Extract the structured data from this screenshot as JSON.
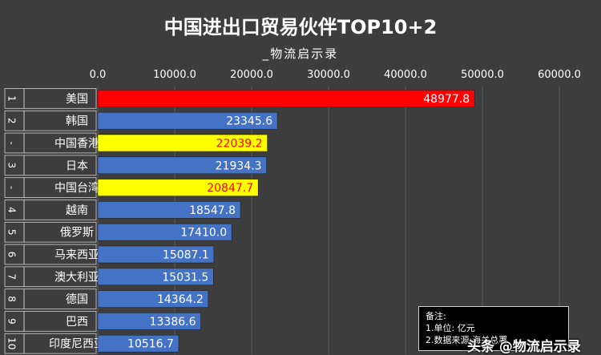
{
  "chart_data": {
    "type": "bar",
    "orientation": "horizontal",
    "title": "中国进出口贸易伙伴TOP10+2",
    "subtitle": "_物流启示录",
    "x_ticks": [
      "0.0",
      "10000.0",
      "20000.0",
      "30000.0",
      "40000.0",
      "50000.0",
      "60000.0"
    ],
    "xlim": [
      0,
      60000
    ],
    "grid": true,
    "ranks": [
      "1",
      "2",
      "-",
      "3",
      "-",
      "4",
      "5",
      "6",
      "7",
      "8",
      "9",
      "10"
    ],
    "categories": [
      "美国",
      "韩国",
      "中国香港",
      "日本",
      "中国台湾",
      "越南",
      "俄罗斯",
      "马来西亚",
      "澳大利亚",
      "德国",
      "巴西",
      "印度尼西亚"
    ],
    "values": [
      48977.8,
      23345.6,
      22039.2,
      21934.3,
      20847.7,
      18547.8,
      17410.0,
      15087.1,
      15031.5,
      14364.2,
      13386.6,
      10516.7
    ],
    "labels": [
      "48977.8",
      "23345.6",
      "22039.2",
      "21934.3",
      "20847.7",
      "18547.8",
      "17410.0",
      "15087.1",
      "15031.5",
      "14364.2",
      "13386.6",
      "10516.7"
    ],
    "bar_colors": [
      "#ff0000",
      "#4472c4",
      "#ffff00",
      "#4472c4",
      "#ffff00",
      "#4472c4",
      "#4472c4",
      "#4472c4",
      "#4472c4",
      "#4472c4",
      "#4472c4",
      "#4472c4"
    ],
    "label_colors": [
      "#ffffff",
      "#ffffff",
      "#ff0000",
      "#ffffff",
      "#ff0000",
      "#ffffff",
      "#ffffff",
      "#ffffff",
      "#ffffff",
      "#ffffff",
      "#ffffff",
      "#ffffff"
    ]
  },
  "notes": {
    "heading": "备注:",
    "line1": "1.单位: 亿元",
    "line2": "2.数据来源:海关总署"
  },
  "watermark": "头条 @物流启示录"
}
